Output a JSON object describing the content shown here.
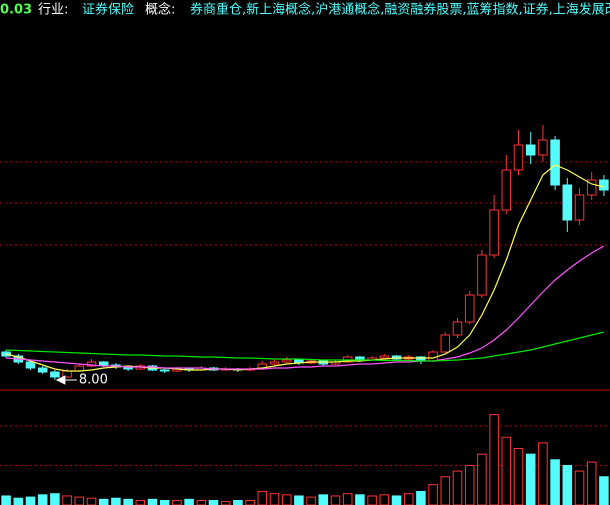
{
  "header": {
    "change": "0.03",
    "industry_label": "行业:",
    "industry": "证券保险",
    "concept_label": "概念:",
    "concepts": "券商重仓,新上海概念,沪港通概念,融资融券股票,蓝筹指数,证券,上海发展改"
  },
  "chart_data": [
    {
      "type": "candlestick",
      "open": [
        10.8,
        10.4,
        9.8,
        9.2,
        8.8,
        8.3,
        8.9,
        9.4,
        9.8,
        9.5,
        9.3,
        9.1,
        9.4,
        9.0,
        8.9,
        9.1,
        9.0,
        9.2,
        9.0,
        9.1,
        9.0,
        9.1,
        9.6,
        9.8,
        10.0,
        9.7,
        9.9,
        9.6,
        9.8,
        10.3,
        10.0,
        10.2,
        10.4,
        10.1,
        10.3,
        9.9,
        10.8,
        12.5,
        13.8,
        16.5,
        20.5,
        25.0,
        29.0,
        31.5,
        30.5,
        32.0,
        27.5,
        24.0,
        26.5,
        28.0
      ],
      "high": [
        11.0,
        10.6,
        10.0,
        9.4,
        9.0,
        9.1,
        9.6,
        10.1,
        9.9,
        9.7,
        9.4,
        9.6,
        9.5,
        9.2,
        9.3,
        9.2,
        9.4,
        9.3,
        9.3,
        9.2,
        9.3,
        9.9,
        10.1,
        10.3,
        10.1,
        10.1,
        10.0,
        10.0,
        10.5,
        10.4,
        10.4,
        10.6,
        10.5,
        10.5,
        10.4,
        11.0,
        12.8,
        14.2,
        16.9,
        21.0,
        26.5,
        30.5,
        33.0,
        32.8,
        33.5,
        32.4,
        28.2,
        27.2,
        28.8,
        28.5
      ],
      "low": [
        10.2,
        9.6,
        9.0,
        8.6,
        8.0,
        8.2,
        8.8,
        9.3,
        9.3,
        9.1,
        8.9,
        9.0,
        8.9,
        8.7,
        8.8,
        8.8,
        8.9,
        8.9,
        8.9,
        8.8,
        8.9,
        9.0,
        9.5,
        9.7,
        9.5,
        9.6,
        9.4,
        9.5,
        9.7,
        9.8,
        9.9,
        10.1,
        9.9,
        10.0,
        9.6,
        9.8,
        10.7,
        12.2,
        13.6,
        16.2,
        20.2,
        24.6,
        28.5,
        29.6,
        29.8,
        27.0,
        22.8,
        23.5,
        26.0,
        26.4
      ],
      "close": [
        10.4,
        9.8,
        9.2,
        8.8,
        8.3,
        8.9,
        9.4,
        9.8,
        9.5,
        9.3,
        9.1,
        9.4,
        9.0,
        8.9,
        9.1,
        9.0,
        9.2,
        9.0,
        9.1,
        9.0,
        9.1,
        9.6,
        9.8,
        10.0,
        9.7,
        9.9,
        9.6,
        9.8,
        10.3,
        10.0,
        10.2,
        10.4,
        10.1,
        10.3,
        9.9,
        10.8,
        12.5,
        13.8,
        16.5,
        20.5,
        25.0,
        29.0,
        31.5,
        30.5,
        32.0,
        27.5,
        24.0,
        26.5,
        28.0,
        27.0
      ],
      "up_color": "#ff3232",
      "down_color": "#54fcfc",
      "series": [
        {
          "color": "#ffff54",
          "values": [
            10.6,
            10.3,
            9.9,
            9.5,
            9.1,
            8.9,
            8.9,
            9.0,
            9.2,
            9.3,
            9.4,
            9.3,
            9.2,
            9.2,
            9.1,
            9.0,
            9.0,
            9.1,
            9.1,
            9.0,
            9.1,
            9.2,
            9.4,
            9.6,
            9.7,
            9.8,
            9.8,
            9.8,
            9.9,
            9.9,
            10.0,
            10.1,
            10.2,
            10.2,
            10.2,
            10.2,
            10.6,
            11.3,
            12.5,
            14.5,
            17.0,
            20.0,
            23.5,
            26.0,
            28.5,
            29.5,
            29.0,
            28.3,
            27.6,
            27.3
          ]
        },
        {
          "color": "#ff54ff",
          "values": [
            10.2,
            10.1,
            10.0,
            9.9,
            9.8,
            9.7,
            9.6,
            9.5,
            9.4,
            9.4,
            9.3,
            9.3,
            9.3,
            9.2,
            9.2,
            9.2,
            9.2,
            9.1,
            9.1,
            9.1,
            9.1,
            9.1,
            9.2,
            9.2,
            9.3,
            9.3,
            9.4,
            9.4,
            9.5,
            9.6,
            9.6,
            9.7,
            9.8,
            9.8,
            9.9,
            9.9,
            10.1,
            10.3,
            10.7,
            11.2,
            12.0,
            13.0,
            14.2,
            15.5,
            16.8,
            18.0,
            19.0,
            19.9,
            20.7,
            21.4
          ]
        },
        {
          "color": "#00e600",
          "values": [
            11.0,
            10.95,
            10.9,
            10.85,
            10.8,
            10.75,
            10.7,
            10.65,
            10.6,
            10.55,
            10.5,
            10.5,
            10.45,
            10.4,
            10.4,
            10.35,
            10.3,
            10.3,
            10.25,
            10.2,
            10.2,
            10.15,
            10.1,
            10.1,
            10.1,
            10.05,
            10.0,
            10.0,
            10.0,
            10.0,
            10.0,
            9.95,
            9.95,
            9.95,
            9.9,
            9.9,
            9.95,
            10.0,
            10.1,
            10.2,
            10.4,
            10.6,
            10.8,
            11.0,
            11.3,
            11.6,
            11.9,
            12.2,
            12.5,
            12.8
          ]
        }
      ],
      "min_label": {
        "value": 8.0,
        "label": "8.00"
      },
      "ylim": [
        7,
        44
      ],
      "yticks": [
        21.5,
        25.7,
        29.8
      ],
      "grid": true
    },
    {
      "type": "bar",
      "values": [
        8,
        6,
        7,
        9,
        10,
        8,
        7,
        6,
        5,
        6,
        5,
        4,
        5,
        4,
        4,
        5,
        4,
        4,
        3,
        4,
        4,
        12,
        10,
        9,
        8,
        7,
        9,
        8,
        10,
        9,
        8,
        9,
        8,
        10,
        12,
        18,
        25,
        30,
        35,
        45,
        80,
        60,
        50,
        45,
        55,
        40,
        35,
        30,
        38,
        25
      ],
      "ylim": [
        0,
        100
      ],
      "yticks": [
        35,
        70
      ],
      "grid": true
    }
  ]
}
